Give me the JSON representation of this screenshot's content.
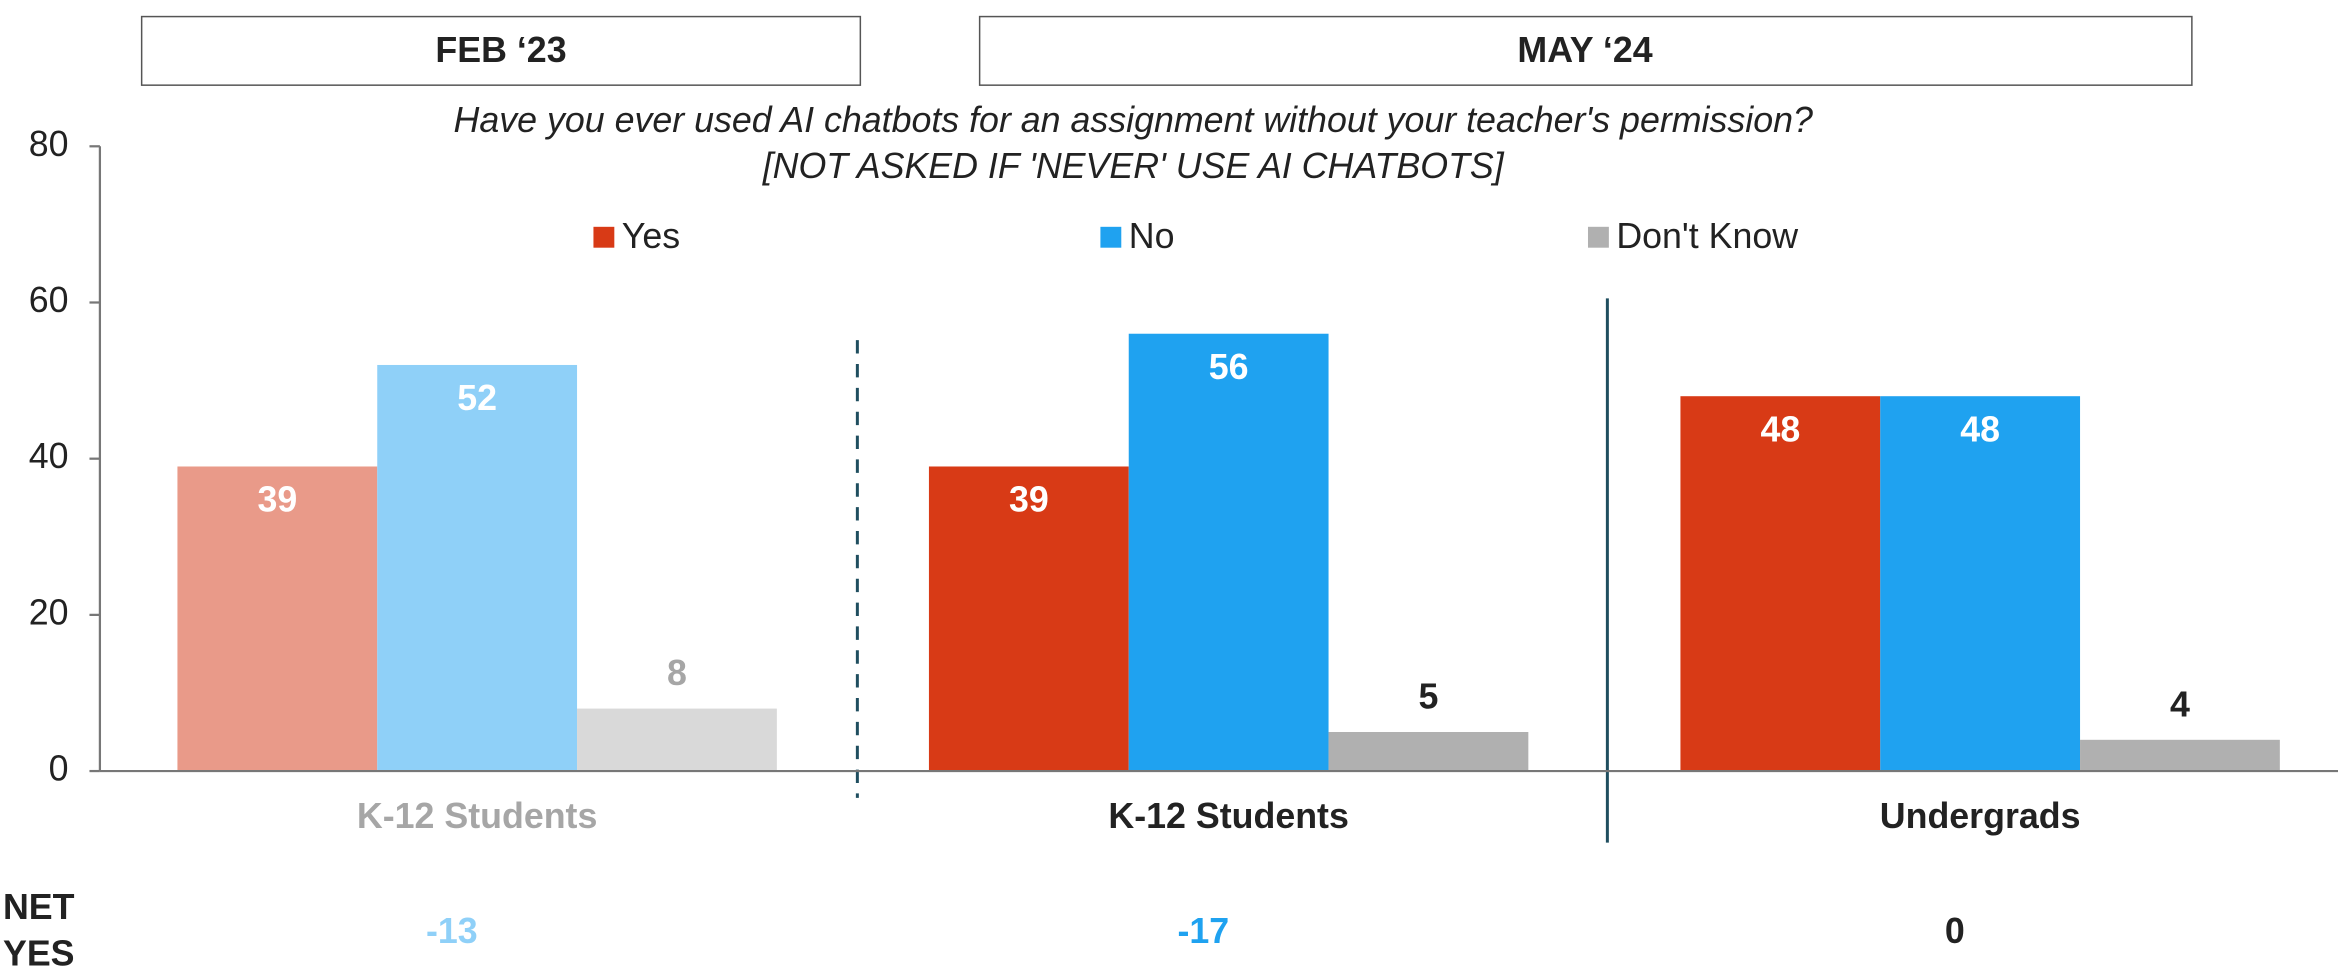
{
  "chart_data": {
    "type": "bar",
    "periods": [
      "FEB ‘23",
      "MAY ‘24"
    ],
    "title_lines": [
      "Have you ever used AI chatbots for an assignment without your teacher's permission?",
      "[NOT ASKED IF 'NEVER' USE AI CHATBOTS]"
    ],
    "categories": [
      "K-12 Students",
      "K-12 Students",
      "Undergrads"
    ],
    "category_colors": [
      "#a6a6a6",
      "#222222",
      "#222222"
    ],
    "series": [
      {
        "name": "Yes",
        "color": "#d83a16",
        "colors": [
          "#e99a89",
          "#d83a16",
          "#d83a16"
        ],
        "label_colors": [
          "#ffffff",
          "#ffffff",
          "#ffffff"
        ],
        "values": [
          39,
          39,
          48
        ]
      },
      {
        "name": "No",
        "color": "#1fa2f0",
        "colors": [
          "#8fd0f8",
          "#1fa2f0",
          "#1fa2f0"
        ],
        "label_colors": [
          "#ffffff",
          "#ffffff",
          "#ffffff"
        ],
        "values": [
          52,
          56,
          48
        ]
      },
      {
        "name": "Don't Know",
        "color": "#b0b0b0",
        "colors": [
          "#d9d9d9",
          "#b0b0b0",
          "#b0b0b0"
        ],
        "label_colors": [
          "#a6a6a6",
          "#222222",
          "#222222"
        ],
        "values": [
          8,
          5,
          4
        ]
      }
    ],
    "ylim": [
      0,
      80
    ],
    "yticks": [
      0,
      20,
      40,
      60,
      80
    ],
    "net_label_lines": [
      "NET",
      "YES"
    ],
    "net_yes": [
      -13,
      -17,
      0
    ],
    "net_colors": [
      "#8fd0f8",
      "#1fa2f0",
      "#222222"
    ]
  }
}
